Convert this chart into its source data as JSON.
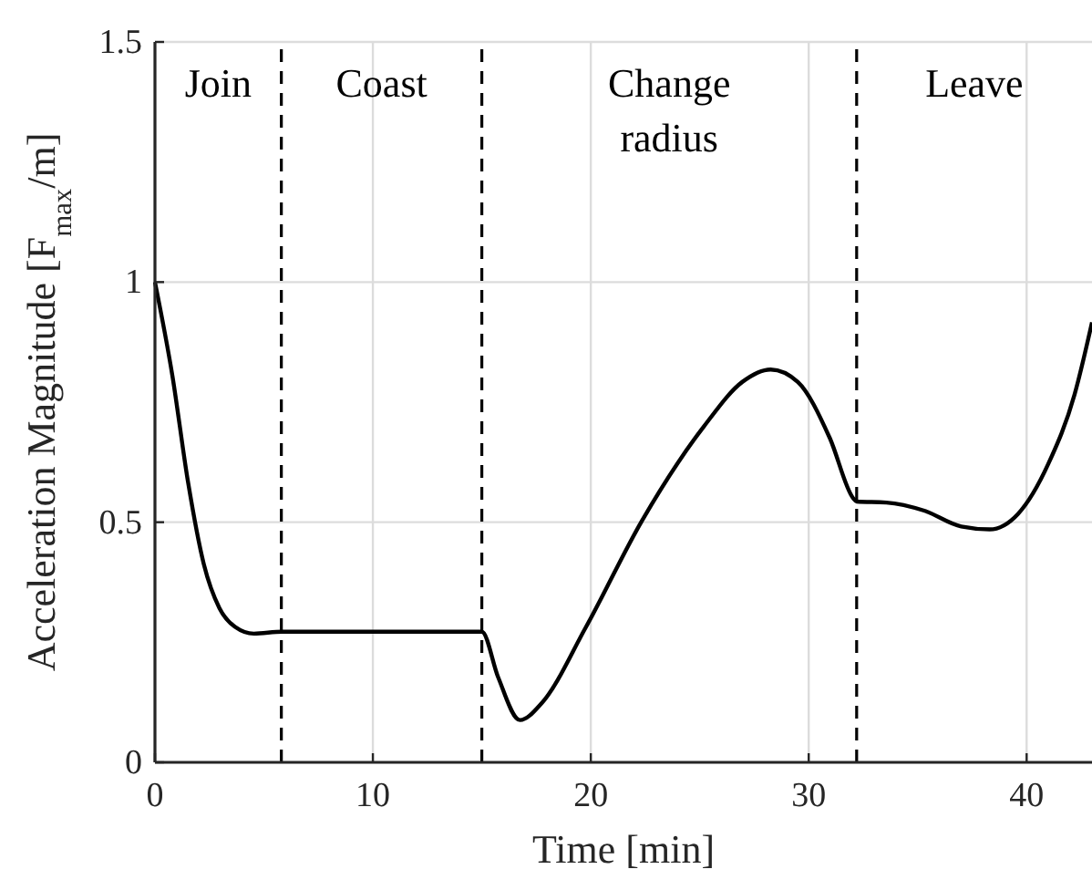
{
  "chart_data": {
    "type": "line",
    "xlabel": "Time [min]",
    "ylabel": "Acceleration Magnitude [F$_{max}$/m]",
    "xlim": [
      0,
      43
    ],
    "ylim": [
      0,
      1.5
    ],
    "xticks": [
      0,
      10,
      20,
      30,
      40
    ],
    "yticks": [
      0,
      0.5,
      1,
      1.5
    ],
    "grid": true,
    "series": [
      {
        "color": "#000000",
        "x": [
          0,
          0.8,
          1.52,
          2.24,
          2.96,
          3.68,
          4.54,
          5.83,
          10,
          14.9,
          15.0,
          15.75,
          16.75,
          17.76,
          19.77,
          22.36,
          25.2,
          26.95,
          28.25,
          29.5,
          30.97,
          32.04,
          32.2,
          33.56,
          35.3,
          37.0,
          38.3,
          39.6,
          41.0,
          42.2,
          43.0
        ],
        "values": [
          1.0,
          0.805,
          0.583,
          0.413,
          0.321,
          0.282,
          0.268,
          0.272,
          0.272,
          0.272,
          0.272,
          0.177,
          0.088,
          0.124,
          0.281,
          0.504,
          0.7,
          0.792,
          0.818,
          0.792,
          0.675,
          0.55,
          0.543,
          0.541,
          0.524,
          0.491,
          0.485,
          0.517,
          0.622,
          0.766,
          0.916
        ]
      }
    ],
    "ref_lines": [
      {
        "axis": "x",
        "value": 5.8,
        "line_style": "dashed",
        "color": "#000000"
      },
      {
        "axis": "x",
        "value": 15,
        "line_style": "dashed",
        "color": "#000000"
      },
      {
        "axis": "x",
        "value": 32.2,
        "line_style": "dashed",
        "color": "#000000"
      }
    ],
    "annotations": [
      "Join",
      "Coast",
      "Change radius",
      "Leave"
    ]
  }
}
